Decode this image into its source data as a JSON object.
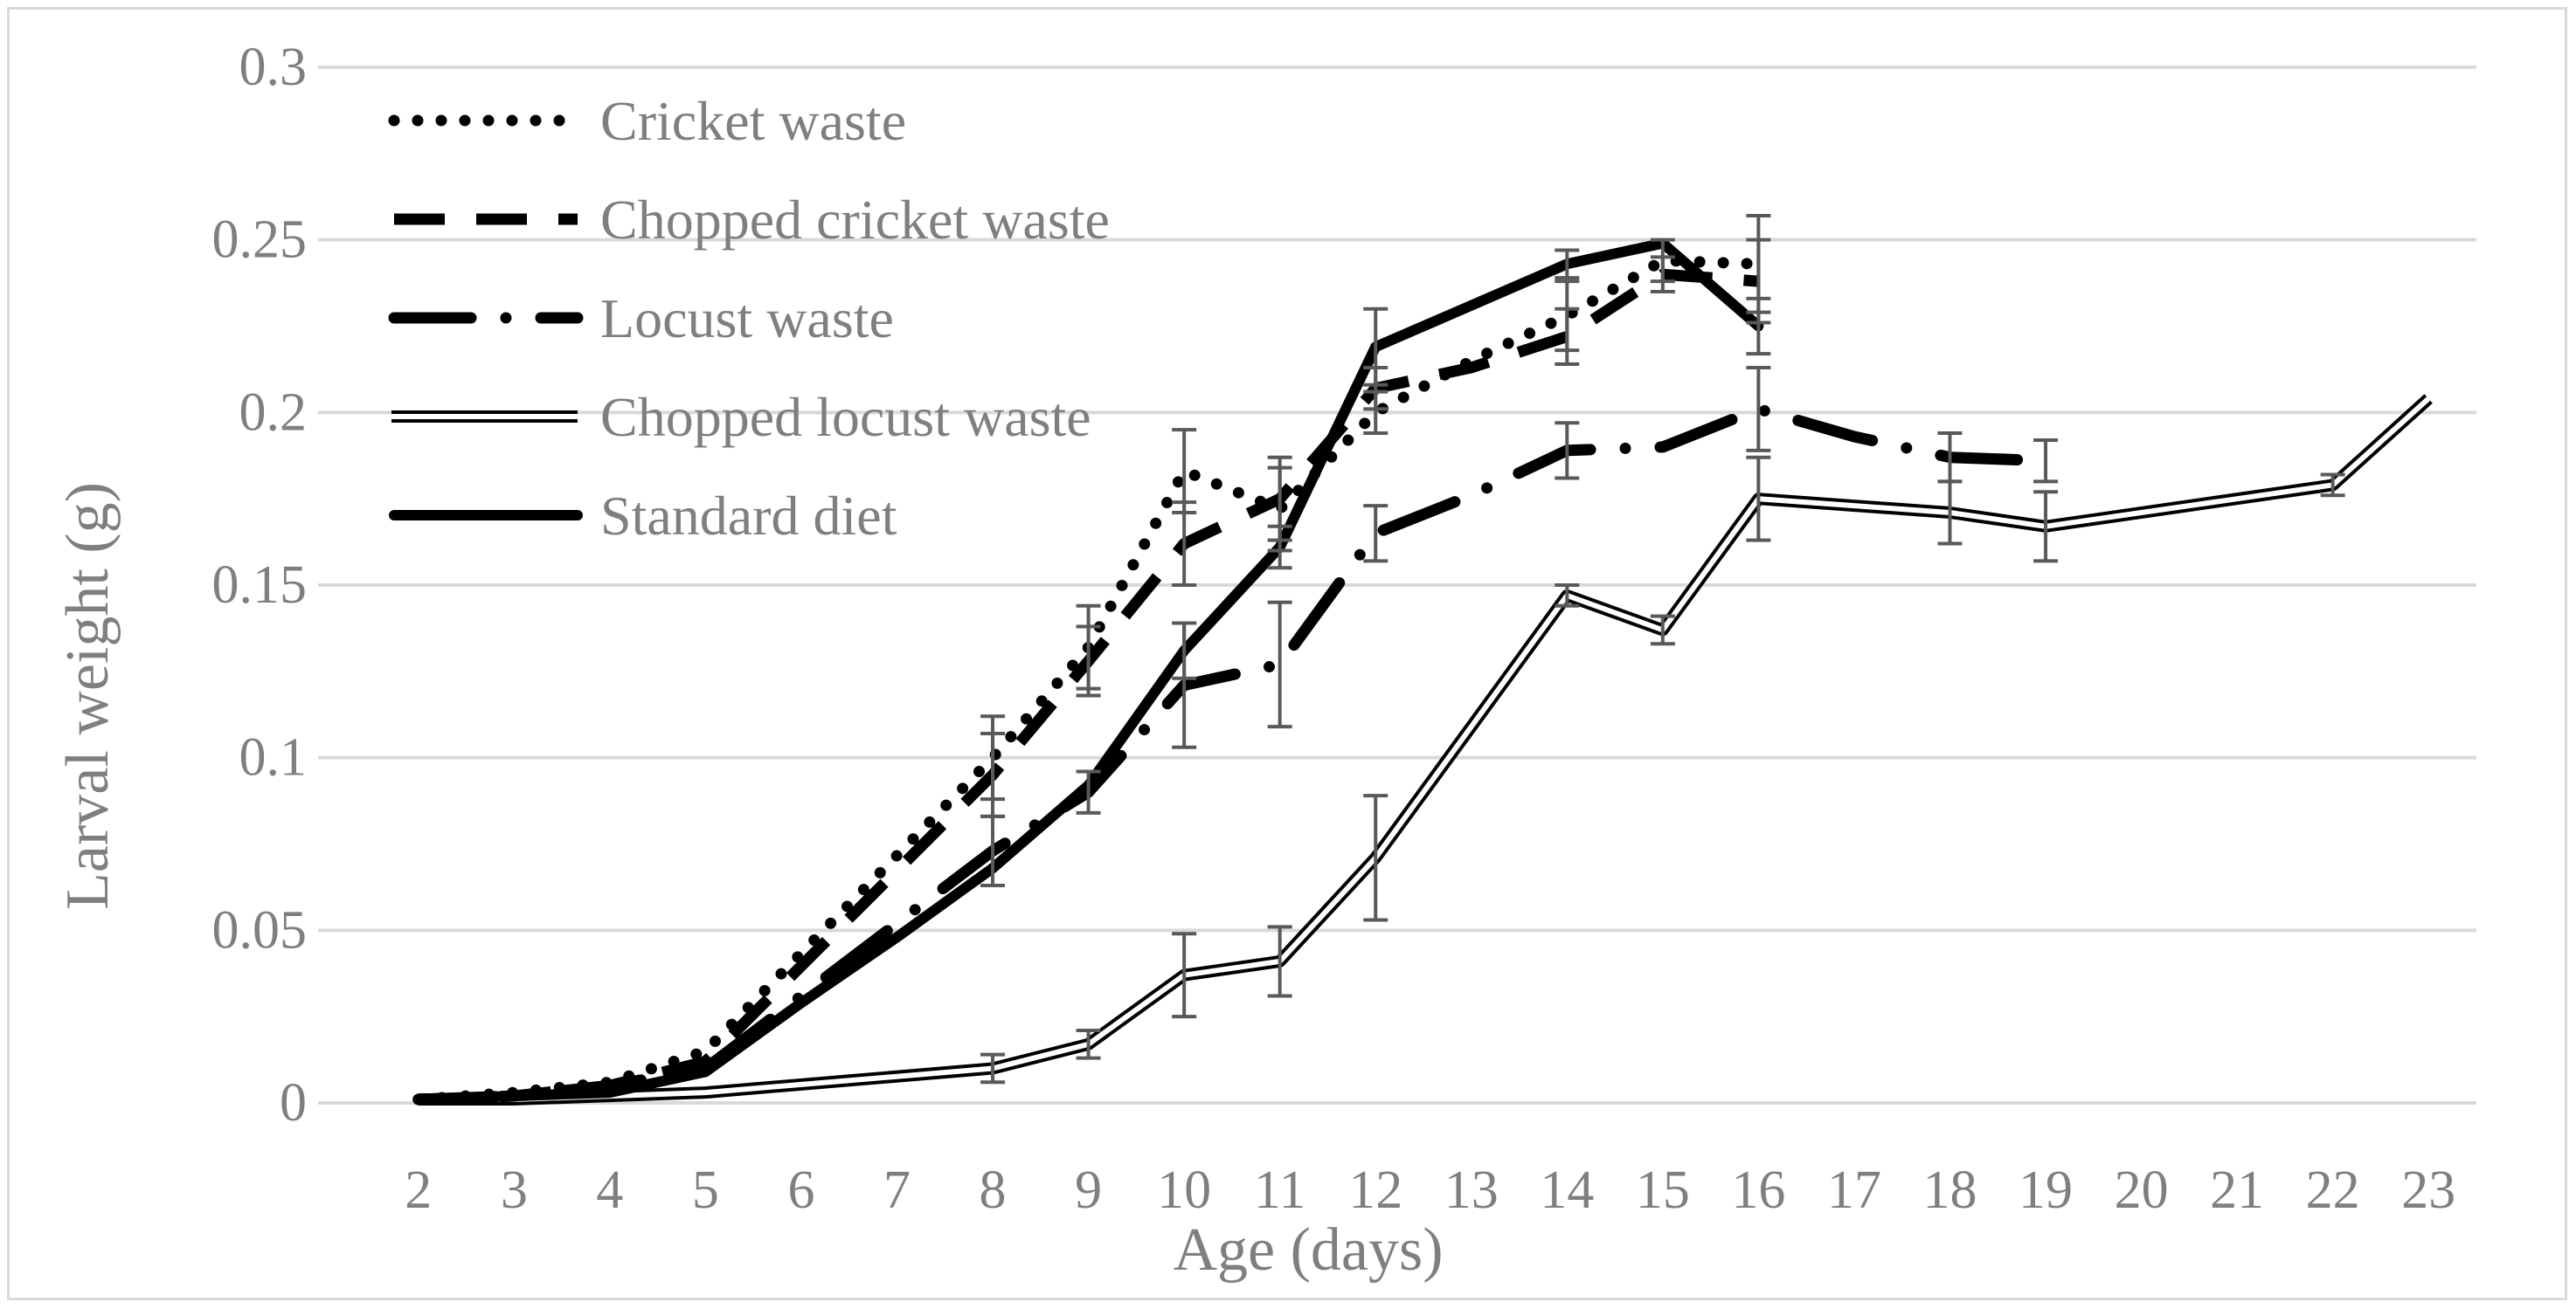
{
  "chart_data": {
    "type": "line",
    "title": "",
    "xlabel": "Age (days)",
    "ylabel": "Larval weight (g)",
    "categories": [
      "2",
      "3",
      "4",
      "5",
      "6",
      "7",
      "8",
      "9",
      "10",
      "11",
      "12",
      "13",
      "14",
      "15",
      "16",
      "17",
      "18",
      "19",
      "20",
      "21",
      "22",
      "23"
    ],
    "yticks": [
      "0",
      "0.05",
      "0.1",
      "0.15",
      "0.2",
      "0.25",
      "0.3"
    ],
    "ylim": [
      0,
      0.3
    ],
    "grid": "horizontal",
    "legend_position": "top-left",
    "series": [
      {
        "name": "Cricket waste",
        "style": "dotted",
        "x": [
          2,
          3,
          4,
          5,
          8,
          9,
          10,
          11,
          12,
          13,
          14,
          15,
          16
        ],
        "values": [
          0.001,
          0.003,
          0.006,
          0.015,
          0.1,
          0.132,
          0.183,
          0.172,
          0.2,
          0.215,
          0.228,
          0.244,
          0.243
        ],
        "errors": [
          0,
          0,
          0,
          0,
          0.012,
          0.012,
          0.012,
          0.012,
          0.006,
          0,
          0.01,
          0.006,
          0.014
        ]
      },
      {
        "name": "Chopped cricket waste",
        "style": "dashed",
        "x": [
          2,
          3,
          4,
          5,
          8,
          9,
          10,
          11,
          12,
          13,
          14,
          15,
          16
        ],
        "values": [
          0.001,
          0.002,
          0.005,
          0.012,
          0.095,
          0.128,
          0.162,
          0.175,
          0.207,
          0.213,
          0.222,
          0.24,
          0.238
        ],
        "errors": [
          0,
          0,
          0,
          0,
          0.012,
          0.01,
          0.012,
          0.012,
          0.006,
          0,
          0.008,
          0.005,
          0.012
        ]
      },
      {
        "name": "Locust waste",
        "style": "dash-dot",
        "x": [
          2,
          3,
          4,
          5,
          8,
          9,
          10,
          11,
          12,
          13,
          14,
          15,
          16,
          17,
          18,
          19
        ],
        "values": [
          0.001,
          0.002,
          0.005,
          0.01,
          0.073,
          0.09,
          0.121,
          0.127,
          0.165,
          0.176,
          0.189,
          0.19,
          0.201,
          0.193,
          0.187,
          0.186
        ],
        "errors": [
          0,
          0,
          0,
          0,
          0.01,
          0.006,
          0.018,
          0.018,
          0.008,
          0,
          0.008,
          0,
          0.012,
          0,
          0.007,
          0.006
        ]
      },
      {
        "name": "Chopped locust waste",
        "style": "double",
        "x": [
          2,
          3,
          4,
          5,
          8,
          9,
          10,
          11,
          12,
          13,
          14,
          15,
          16,
          18,
          19,
          22,
          23
        ],
        "values": [
          0.001,
          0.001,
          0.002,
          0.003,
          0.01,
          0.017,
          0.037,
          0.041,
          0.071,
          0.109,
          0.147,
          0.137,
          0.175,
          0.171,
          0.167,
          0.179,
          0.204
        ],
        "errors": [
          0,
          0,
          0,
          0,
          0.004,
          0.004,
          0.012,
          0.01,
          0.018,
          0,
          0.003,
          0.004,
          0.012,
          0.009,
          0.01,
          0.003,
          0
        ]
      },
      {
        "name": "Standard diet",
        "style": "solid",
        "x": [
          2,
          3,
          4,
          5,
          6,
          7,
          8,
          9,
          10,
          11,
          12,
          13,
          14,
          15,
          16
        ],
        "values": [
          0.001,
          0.002,
          0.003,
          0.009,
          0.029,
          0.048,
          0.068,
          0.092,
          0.131,
          0.161,
          0.219,
          0.231,
          0.243,
          0.249,
          0.225
        ],
        "errors": [
          0,
          0,
          0,
          0,
          0,
          0,
          0,
          0,
          0.008,
          0.006,
          0.011,
          0,
          0.004,
          0,
          0.008
        ]
      }
    ]
  }
}
